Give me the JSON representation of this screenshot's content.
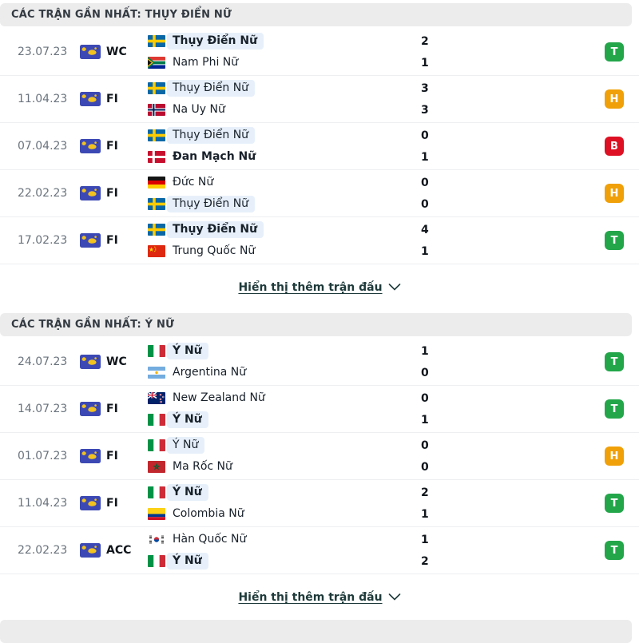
{
  "colors": {
    "result_T": "#23a64a",
    "result_H": "#f0a008",
    "result_B": "#dd1123",
    "featured_team_highlight": "#e7f0fa",
    "section_header_bg": "#ececec",
    "link_text": "#1e3a3a"
  },
  "sections": [
    {
      "header": "CÁC TRẬN GẦN NHẤT: THỤY ĐIỂN NỮ",
      "show_more": "Hiển thị thêm trận đấu",
      "matches": [
        {
          "date": "23.07.23",
          "competition": "WC",
          "result": "T",
          "home": {
            "name": "Thụy Điển Nữ",
            "flag": "sweden-flag",
            "score": "2",
            "winner": true,
            "featured": true
          },
          "away": {
            "name": "Nam Phi Nữ",
            "flag": "south-africa-flag",
            "score": "1",
            "winner": false,
            "featured": false
          }
        },
        {
          "date": "11.04.23",
          "competition": "FI",
          "result": "H",
          "home": {
            "name": "Thụy Điển Nữ",
            "flag": "sweden-flag",
            "score": "3",
            "winner": false,
            "featured": true
          },
          "away": {
            "name": "Na Uy Nữ",
            "flag": "norway-flag",
            "score": "3",
            "winner": false,
            "featured": false
          }
        },
        {
          "date": "07.04.23",
          "competition": "FI",
          "result": "B",
          "home": {
            "name": "Thụy Điển Nữ",
            "flag": "sweden-flag",
            "score": "0",
            "winner": false,
            "featured": true
          },
          "away": {
            "name": "Đan Mạch Nữ",
            "flag": "denmark-flag",
            "score": "1",
            "winner": true,
            "featured": false
          }
        },
        {
          "date": "22.02.23",
          "competition": "FI",
          "result": "H",
          "home": {
            "name": "Đức Nữ",
            "flag": "germany-flag",
            "score": "0",
            "winner": false,
            "featured": false
          },
          "away": {
            "name": "Thụy Điển Nữ",
            "flag": "sweden-flag",
            "score": "0",
            "winner": false,
            "featured": true
          }
        },
        {
          "date": "17.02.23",
          "competition": "FI",
          "result": "T",
          "home": {
            "name": "Thụy Điển Nữ",
            "flag": "sweden-flag",
            "score": "4",
            "winner": true,
            "featured": true
          },
          "away": {
            "name": "Trung Quốc Nữ",
            "flag": "china-flag",
            "score": "1",
            "winner": false,
            "featured": false
          }
        }
      ]
    },
    {
      "header": "CÁC TRẬN GẦN NHẤT: Ý NỮ",
      "show_more": "Hiển thị thêm trận đấu",
      "matches": [
        {
          "date": "24.07.23",
          "competition": "WC",
          "result": "T",
          "home": {
            "name": "Ý Nữ",
            "flag": "italy-flag",
            "score": "1",
            "winner": true,
            "featured": true
          },
          "away": {
            "name": "Argentina Nữ",
            "flag": "argentina-flag",
            "score": "0",
            "winner": false,
            "featured": false
          }
        },
        {
          "date": "14.07.23",
          "competition": "FI",
          "result": "T",
          "home": {
            "name": "New Zealand Nữ",
            "flag": "new-zealand-flag",
            "score": "0",
            "winner": false,
            "featured": false
          },
          "away": {
            "name": "Ý Nữ",
            "flag": "italy-flag",
            "score": "1",
            "winner": true,
            "featured": true
          }
        },
        {
          "date": "01.07.23",
          "competition": "FI",
          "result": "H",
          "home": {
            "name": "Ý Nữ",
            "flag": "italy-flag",
            "score": "0",
            "winner": false,
            "featured": true
          },
          "away": {
            "name": "Ma Rốc Nữ",
            "flag": "morocco-flag",
            "score": "0",
            "winner": false,
            "featured": false
          }
        },
        {
          "date": "11.04.23",
          "competition": "FI",
          "result": "T",
          "home": {
            "name": "Ý Nữ",
            "flag": "italy-flag",
            "score": "2",
            "winner": true,
            "featured": true
          },
          "away": {
            "name": "Colombia Nữ",
            "flag": "colombia-flag",
            "score": "1",
            "winner": false,
            "featured": false
          }
        },
        {
          "date": "22.02.23",
          "competition": "ACC",
          "result": "T",
          "home": {
            "name": "Hàn Quốc Nữ",
            "flag": "south-korea-flag",
            "score": "1",
            "winner": false,
            "featured": false
          },
          "away": {
            "name": "Ý Nữ",
            "flag": "italy-flag",
            "score": "2",
            "winner": true,
            "featured": true
          }
        }
      ]
    }
  ]
}
